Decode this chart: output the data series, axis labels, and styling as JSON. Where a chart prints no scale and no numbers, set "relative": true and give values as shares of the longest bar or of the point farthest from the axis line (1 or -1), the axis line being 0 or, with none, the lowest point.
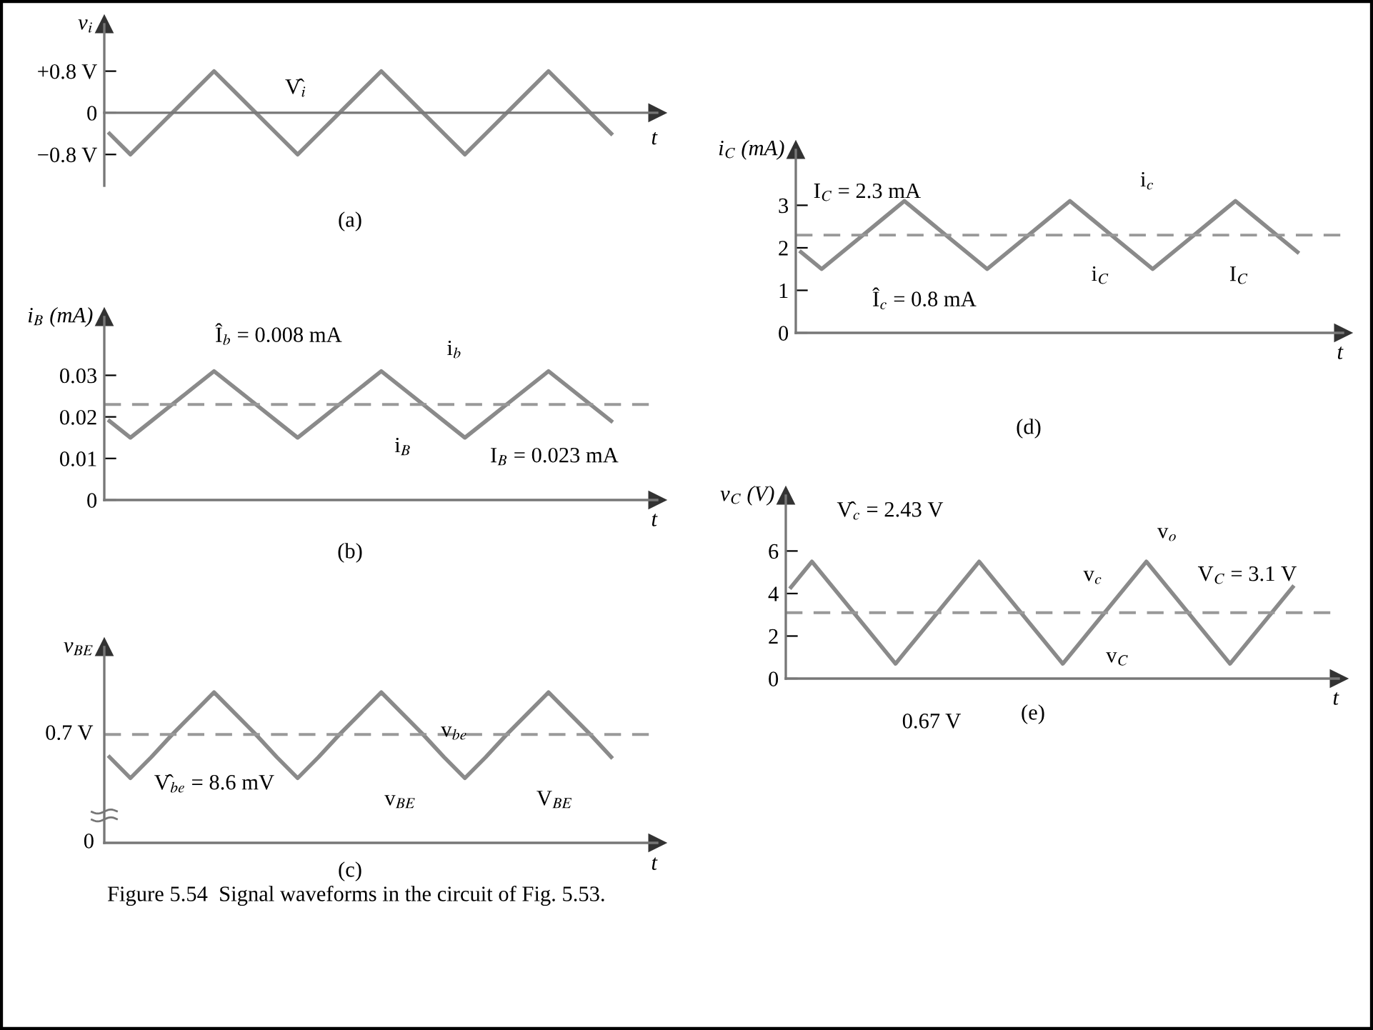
{
  "chart_data": [
    {
      "type": "line",
      "title": "(a)",
      "ylabel": "v$_{i}$",
      "xlabel": "t",
      "tick_labels": "y",
      "categories": [
        null,
        null,
        null,
        null,
        null,
        null,
        null,
        null,
        null,
        null,
        null,
        null,
        null,
        null,
        null,
        null,
        null,
        null,
        null,
        null,
        null,
        null,
        null,
        null,
        null
      ],
      "series": [
        {
          "color": "#8a8a8a",
          "values": [
            -0.4,
            -0.8,
            -0.4,
            0,
            0.4,
            0.8,
            0.4,
            0,
            -0.4,
            -0.8,
            -0.4,
            0,
            0.4,
            0.8,
            0.4,
            0,
            -0.4,
            -0.8,
            -0.4,
            0,
            0.4,
            0.8,
            0.4,
            0,
            -0.4
          ]
        }
      ],
      "ylim": [
        -1.4,
        1.7
      ],
      "yticks": [
        {
          "value": 0.8,
          "label": "+0.8 V"
        },
        0,
        {
          "value": -0.8,
          "label": "−0.8 V"
        }
      ],
      "annotations": [
        "V̂$_{i}$"
      ]
    },
    {
      "type": "line",
      "title": "(b)",
      "ylabel": "i$_{B}$ (mA)",
      "xlabel": "t",
      "tick_labels": "y",
      "categories": [
        null,
        null,
        null,
        null,
        null,
        null,
        null,
        null,
        null,
        null,
        null,
        null,
        null,
        null,
        null,
        null,
        null,
        null,
        null,
        null,
        null,
        null,
        null,
        null,
        null
      ],
      "series": [
        {
          "color": "#8a8a8a",
          "values": [
            0.019,
            0.015,
            0.019,
            0.023,
            0.027,
            0.031,
            0.027,
            0.023,
            0.019,
            0.015,
            0.019,
            0.023,
            0.027,
            0.031,
            0.027,
            0.023,
            0.019,
            0.015,
            0.019,
            0.023,
            0.027,
            0.031,
            0.027,
            0.023,
            0.019
          ]
        }
      ],
      "ylim": [
        0,
        0.044
      ],
      "yticks": [
        0,
        0.01,
        0.02,
        0.03
      ],
      "ref_lines": [
        {
          "axis": "y",
          "value": 0.023,
          "color": "#999999",
          "line_style": "dashed"
        }
      ],
      "annotations": [
        "Î$_{b}$ = 0.008 mA",
        "i$_{b}$",
        "i$_{B}$",
        "I$_{B}$ = 0.023 mA"
      ]
    },
    {
      "type": "line",
      "title": "(c)",
      "ylabel": "v$_{BE}$",
      "xlabel": "t",
      "relative": true,
      "categories": [
        null,
        null,
        null,
        null,
        null,
        null,
        null,
        null,
        null,
        null,
        null,
        null,
        null,
        null,
        null,
        null,
        null,
        null,
        null,
        null,
        null,
        null,
        null,
        null,
        null
      ],
      "series": [
        {
          "color": "#8a8a8a",
          "values": [
            0.57,
            0.43,
            0.57,
            0.72,
            0.86,
            1,
            0.86,
            0.72,
            0.57,
            0.43,
            0.57,
            0.72,
            0.86,
            1,
            0.86,
            0.72,
            0.57,
            0.43,
            0.57,
            0.72,
            0.86,
            1,
            0.86,
            0.72,
            0.57
          ]
        }
      ],
      "ref_lines": [
        {
          "axis": "y",
          "value": 0.72,
          "label": "0.7 V",
          "color": "#999999",
          "line_style": "dashed"
        }
      ],
      "annotations": [
        "V̂$_{be}$ = 8.6 mV",
        "v$_{be}$",
        "v$_{BE}$",
        "V$_{BE}$",
        "0",
        "Figure 5.54  Signal waveforms in the circuit of Fig. 5.53."
      ]
    },
    {
      "type": "line",
      "title": "(d)",
      "ylabel": "i$_{C}$ (mA)",
      "xlabel": "t",
      "tick_labels": "y",
      "categories": [
        null,
        null,
        null,
        null,
        null,
        null,
        null,
        null,
        null,
        null,
        null,
        null,
        null,
        null,
        null,
        null,
        null,
        null,
        null,
        null,
        null,
        null,
        null,
        null,
        null
      ],
      "series": [
        {
          "color": "#8a8a8a",
          "values": [
            1.9,
            1.5,
            1.9,
            2.3,
            2.7,
            3.1,
            2.7,
            2.3,
            1.9,
            1.5,
            1.9,
            2.3,
            2.7,
            3.1,
            2.7,
            2.3,
            1.9,
            1.5,
            1.9,
            2.3,
            2.7,
            3.1,
            2.7,
            2.3,
            1.9
          ]
        }
      ],
      "ylim": [
        0,
        4.3
      ],
      "yticks": [
        0,
        1,
        2,
        3
      ],
      "ref_lines": [
        {
          "axis": "y",
          "value": 2.3,
          "color": "#999999",
          "line_style": "dashed"
        }
      ],
      "annotations": [
        "I$_{C}$ = 2.3 mA",
        "Î$_{c}$ = 0.8 mA",
        "i$_{c}$",
        "i$_{C}$",
        "I$_{C}$"
      ]
    },
    {
      "type": "line",
      "title": "(e)",
      "ylabel": "v$_{C}$ (V)",
      "xlabel": "t",
      "tick_labels": "y",
      "categories": [
        null,
        null,
        null,
        null,
        null,
        null,
        null,
        null,
        null,
        null,
        null,
        null,
        null,
        null,
        null,
        null,
        null,
        null,
        null,
        null,
        null,
        null,
        null,
        null,
        null
      ],
      "series": [
        {
          "color": "#8a8a8a",
          "values": [
            4.3,
            5.5,
            4.3,
            3.1,
            1.9,
            0.7,
            1.9,
            3.1,
            4.3,
            5.5,
            4.3,
            3.1,
            1.9,
            0.7,
            1.9,
            3.1,
            4.3,
            5.5,
            4.3,
            3.1,
            1.9,
            0.7,
            1.9,
            3.1,
            4.3
          ]
        }
      ],
      "ylim": [
        0,
        8.6
      ],
      "yticks": [
        0,
        2,
        4,
        6
      ],
      "ref_lines": [
        {
          "axis": "y",
          "value": 3.1,
          "color": "#999999",
          "line_style": "dashed"
        }
      ],
      "annotations": [
        "V̂$_{c}$ = 2.43 V",
        "0.67 V",
        "v$_{o}$",
        "v$_{c}$",
        "V$_{C}$ = 3.1 V",
        "v$_{C}$"
      ]
    }
  ]
}
